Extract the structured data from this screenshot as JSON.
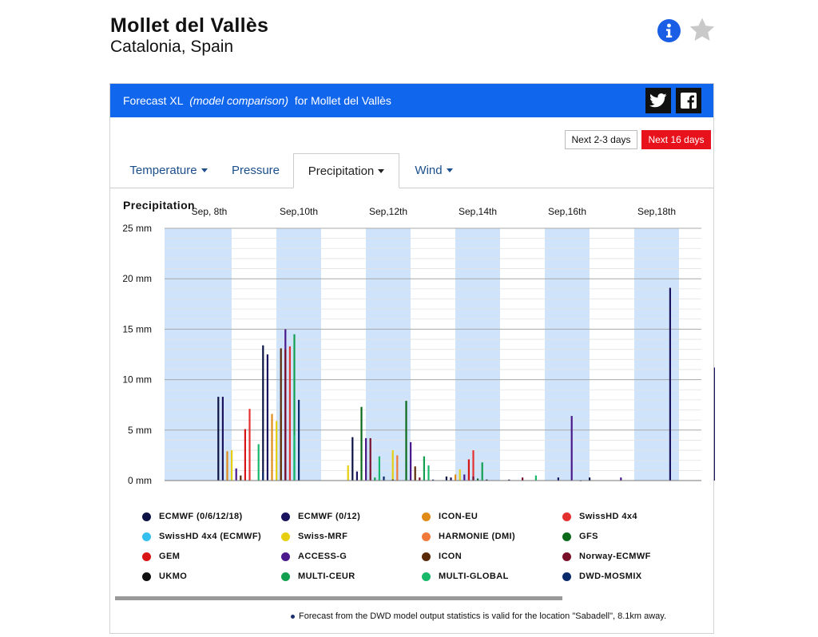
{
  "location": {
    "name": "Mollet del Vallès",
    "region": "Catalonia, Spain"
  },
  "icons": {
    "info": "info-icon",
    "favorite": "star-icon",
    "twitter": "twitter-icon",
    "facebook": "facebook-icon"
  },
  "colors": {
    "header": "#1166ee",
    "active_range": "#e8121c",
    "day_band": "#cfe4fb",
    "tab_link": "#1b4f8c"
  },
  "panel": {
    "title_prefix": "Forecast XL",
    "title_em": "(model comparison)",
    "title_suffix": "for Mollet del Vallès"
  },
  "ranges": [
    {
      "label": "Next 2-3 days",
      "active": false
    },
    {
      "label": "Next 16 days",
      "active": true
    }
  ],
  "tabs": [
    {
      "label": "Temperature",
      "dropdown": true,
      "active": false
    },
    {
      "label": "Pressure",
      "dropdown": false,
      "active": false
    },
    {
      "label": "Precipitation",
      "dropdown": true,
      "active": true
    },
    {
      "label": "Wind",
      "dropdown": true,
      "active": false
    }
  ],
  "footnote": "Forecast from the DWD model output statistics is valid for the location \"Sabadell\", 8.1km away.",
  "chart_data": {
    "type": "bar",
    "title": "Precipitation",
    "ylabel": "",
    "unit": "mm",
    "ylim": [
      0,
      25
    ],
    "y_ticks": [
      "0 mm",
      "5 mm",
      "10 mm",
      "15 mm",
      "20 mm",
      "25 mm"
    ],
    "x_day_range": [
      7,
      19
    ],
    "x_tick_labels": [
      {
        "day": 8,
        "label": "Sep, 8th"
      },
      {
        "day": 10,
        "label": "Sep,10th"
      },
      {
        "day": 12,
        "label": "Sep,12th"
      },
      {
        "day": 14,
        "label": "Sep,14th"
      },
      {
        "day": 16,
        "label": "Sep,16th"
      },
      {
        "day": 18,
        "label": "Sep,18th"
      }
    ],
    "shaded_days": [
      7,
      8,
      10,
      12,
      14,
      16,
      18
    ],
    "grid": true,
    "legend_position": "bottom",
    "series": [
      {
        "name": "ECMWF (0/6/12/18)",
        "color": "#0d1445",
        "points": [
          [
            8.2,
            8.3
          ],
          [
            9.2,
            13.4
          ],
          [
            11.2,
            4.3
          ],
          [
            13.3,
            0.4
          ],
          [
            14.7,
            0.1
          ],
          [
            16.5,
            0.3
          ]
        ]
      },
      {
        "name": "ECMWF (0/12)",
        "color": "#1a1360",
        "points": [
          [
            8.3,
            8.3
          ],
          [
            9.3,
            12.5
          ],
          [
            11.3,
            0.9
          ],
          [
            13.4,
            0.3
          ],
          [
            15.8,
            0.3
          ],
          [
            18.3,
            19.1
          ],
          [
            19.3,
            11.2
          ]
        ]
      },
      {
        "name": "ICON-EU",
        "color": "#e08a1a",
        "points": [
          [
            8.4,
            2.9
          ],
          [
            9.4,
            6.6
          ],
          [
            13.5,
            0.6
          ]
        ]
      },
      {
        "name": "SwissHD 4x4",
        "color": "#e53030",
        "points": [
          [
            8.9,
            7.1
          ],
          [
            9.8,
            13.3
          ],
          [
            13.9,
            3.0
          ]
        ]
      },
      {
        "name": "SwissHD 4x4 (ECMWF)",
        "color": "#33c0ee",
        "points": [
          [
            9.9,
            3.7
          ]
        ]
      },
      {
        "name": "Swiss-MRF",
        "color": "#e6cf10",
        "points": [
          [
            8.5,
            3.0
          ],
          [
            9.5,
            5.9
          ],
          [
            11.1,
            1.5
          ],
          [
            12.1,
            3.0
          ],
          [
            13.6,
            1.1
          ]
        ]
      },
      {
        "name": "HARMONIE (DMI)",
        "color": "#f07a3a",
        "points": [
          [
            9.6,
            6.7
          ],
          [
            12.2,
            2.5
          ]
        ]
      },
      {
        "name": "GFS",
        "color": "#0b6a1c",
        "points": [
          [
            11.4,
            7.3
          ],
          [
            12.4,
            7.9
          ],
          [
            14.0,
            0.2
          ]
        ]
      },
      {
        "name": "GEM",
        "color": "#d81414",
        "points": [
          [
            8.8,
            5.1
          ],
          [
            13.8,
            2.1
          ]
        ]
      },
      {
        "name": "ACCESS-G",
        "color": "#4a1a8c",
        "points": [
          [
            8.6,
            1.2
          ],
          [
            9.7,
            15.0
          ],
          [
            11.5,
            4.2
          ],
          [
            12.5,
            3.8
          ],
          [
            13.7,
            0.6
          ],
          [
            16.1,
            6.4
          ],
          [
            17.2,
            0.3
          ]
        ]
      },
      {
        "name": "ICON",
        "color": "#5a2a08",
        "points": [
          [
            8.7,
            0.5
          ],
          [
            9.6,
            13.1
          ],
          [
            12.6,
            1.4
          ]
        ]
      },
      {
        "name": "Norway-ECMWF",
        "color": "#7a0f2a",
        "points": [
          [
            9.7,
            13.0
          ],
          [
            11.6,
            4.2
          ],
          [
            12.7,
            0.3
          ],
          [
            13.9,
            0.4
          ],
          [
            15.0,
            0.3
          ]
        ]
      },
      {
        "name": "UKMO",
        "color": "#111111",
        "points": [
          [
            12.1,
            0.1
          ],
          [
            14.2,
            0.1
          ]
        ]
      },
      {
        "name": "MULTI-CEUR",
        "color": "#12a050",
        "points": [
          [
            9.9,
            14.5
          ],
          [
            11.7,
            0.3
          ],
          [
            12.8,
            2.4
          ],
          [
            14.1,
            1.8
          ]
        ]
      },
      {
        "name": "MULTI-GLOBAL",
        "color": "#18b86a",
        "points": [
          [
            9.1,
            3.6
          ],
          [
            9.9,
            4.5
          ],
          [
            11.8,
            2.4
          ],
          [
            12.9,
            1.5
          ],
          [
            15.3,
            0.5
          ]
        ]
      },
      {
        "name": "DWD-MOSMIX",
        "color": "#0b2a6a",
        "points": [
          [
            9.2,
            0.8
          ],
          [
            10.0,
            8.0
          ],
          [
            11.9,
            0.4
          ],
          [
            13.0,
            0.1
          ],
          [
            16.3,
            0.0
          ]
        ]
      }
    ]
  }
}
